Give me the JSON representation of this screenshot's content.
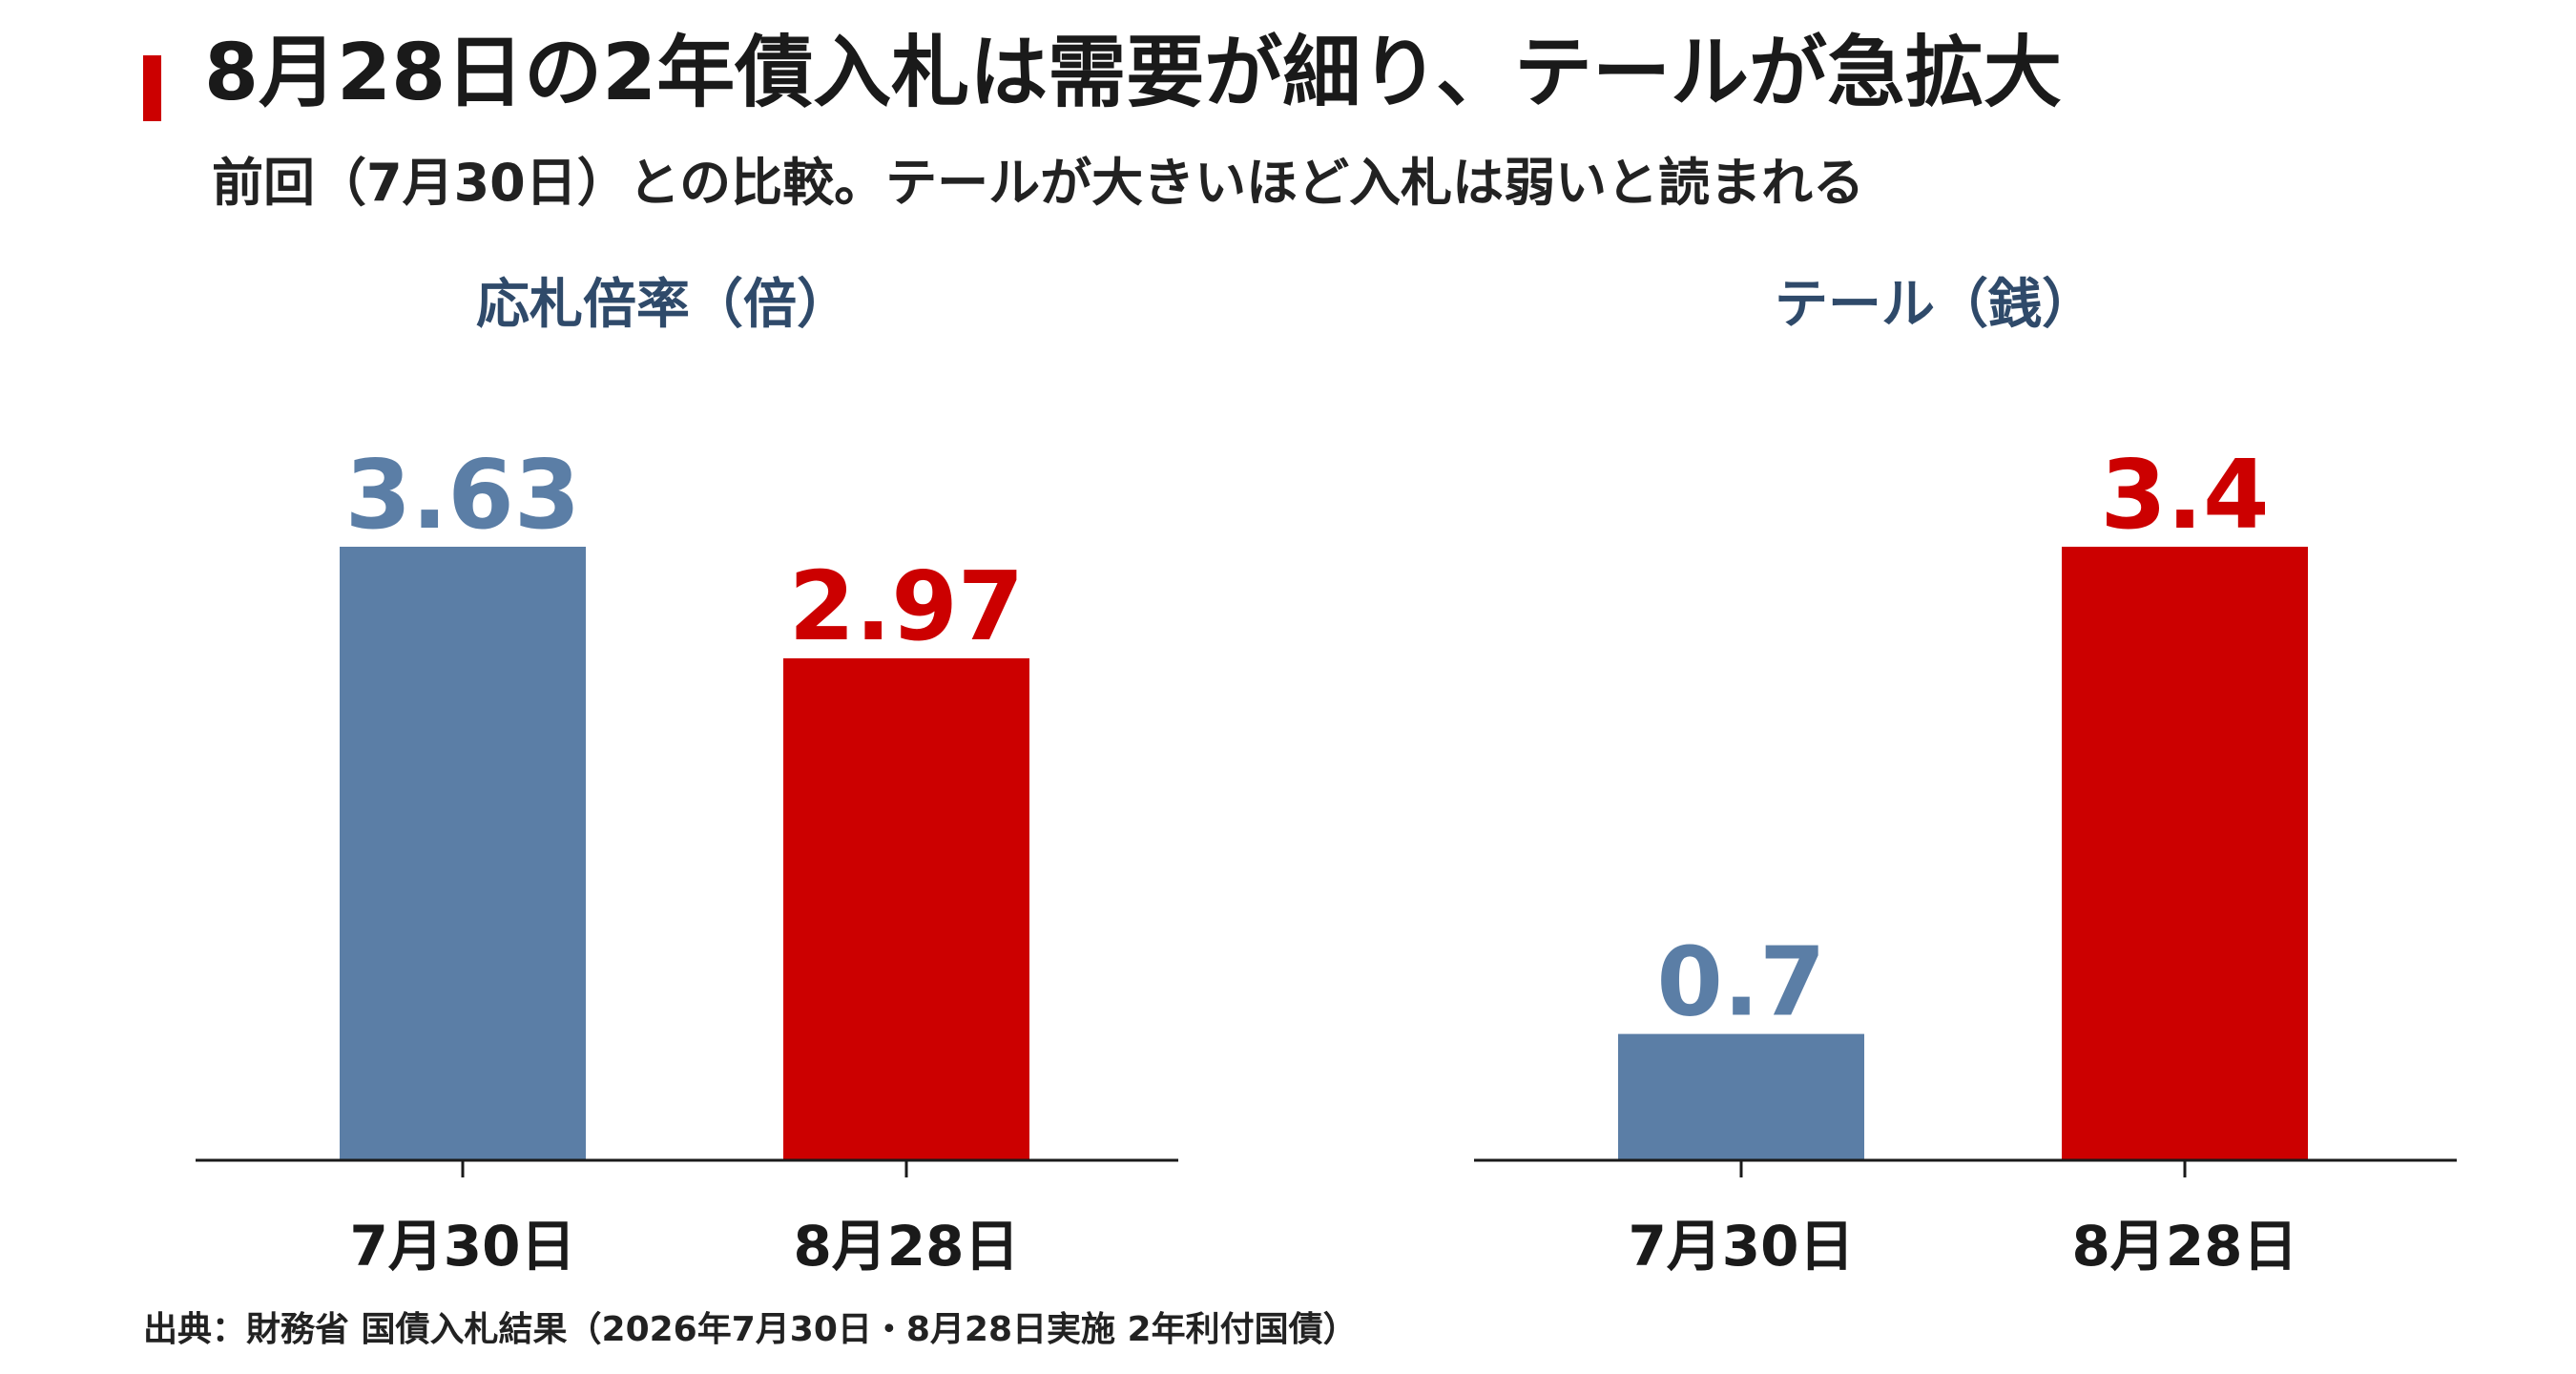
{
  "header": {
    "title": "8月28日の2年債入札は需要が細り、テールが急拡大",
    "subtitle": "前回（7月30日）との比較。テールが大きいほど入札は弱いと読まれる"
  },
  "colors": {
    "accent": "#cc0000",
    "previous": "#5b7ea6",
    "current": "#cc0000",
    "panel_title": "#2f4a6a",
    "axis": "#1a1a1a"
  },
  "chart_data": [
    {
      "type": "bar",
      "title": "応札倍率（倍）",
      "categories": [
        "7月30日",
        "8月28日"
      ],
      "values": [
        3.63,
        2.97
      ],
      "value_labels": [
        "3.63",
        "2.97"
      ],
      "bar_colors": [
        "#5b7ea6",
        "#cc0000"
      ],
      "ylim": [
        0,
        3.63
      ]
    },
    {
      "type": "bar",
      "title": "テール（銭）",
      "categories": [
        "7月30日",
        "8月28日"
      ],
      "values": [
        0.7,
        3.4
      ],
      "value_labels": [
        "0.7",
        "3.4"
      ],
      "bar_colors": [
        "#5b7ea6",
        "#cc0000"
      ],
      "ylim": [
        0,
        3.4
      ]
    }
  ],
  "footer": {
    "source": "出典：財務省 国債入札結果（2026年7月30日・8月28日実施 2年利付国債）"
  }
}
